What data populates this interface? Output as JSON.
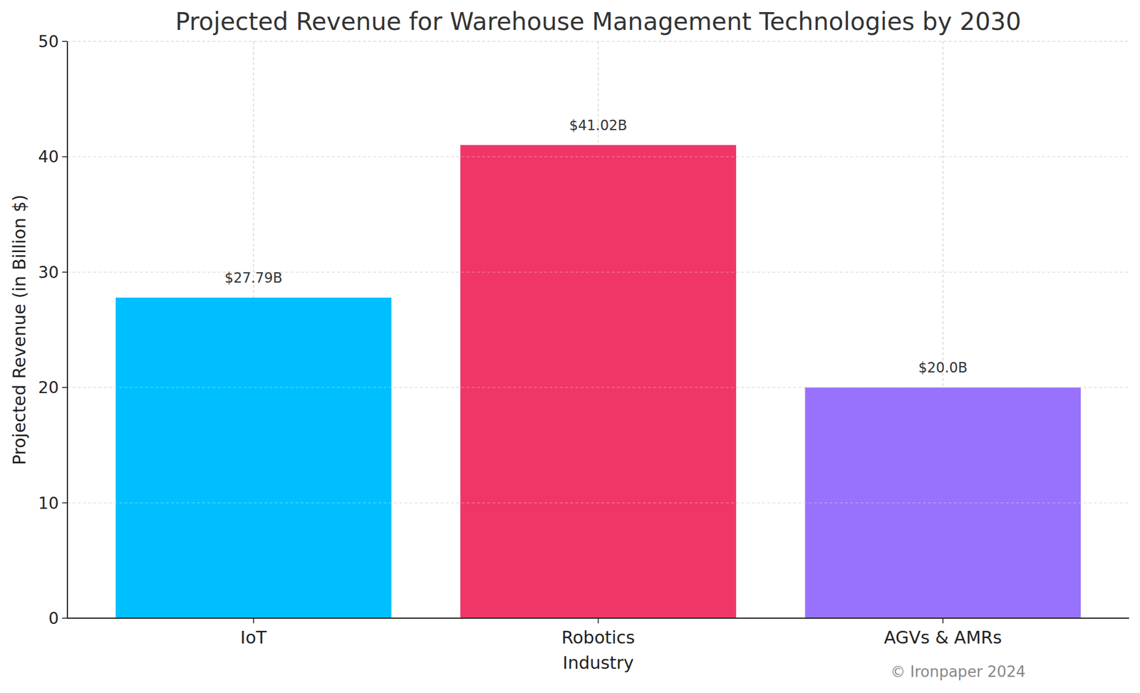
{
  "chart_data": {
    "type": "bar",
    "title": "Projected Revenue for Warehouse Management Technologies by 2030",
    "x_label": "Industry",
    "y_label": "Projected Revenue (in Billion $)",
    "categories": [
      "IoT",
      "Robotics",
      "AGVs & AMRs"
    ],
    "values": [
      27.79,
      41.02,
      20.0
    ],
    "value_labels": [
      "$27.79B",
      "$41.02B",
      "$20.0B"
    ],
    "colors": [
      "#00BFFF",
      "#EF3667",
      "#9872FC"
    ],
    "ylim": [
      0,
      50
    ],
    "yticks": [
      0,
      10,
      20,
      30,
      40,
      50
    ],
    "grid": true,
    "data_labels": true,
    "annotations": [
      "© Ironpaper 2024"
    ]
  }
}
